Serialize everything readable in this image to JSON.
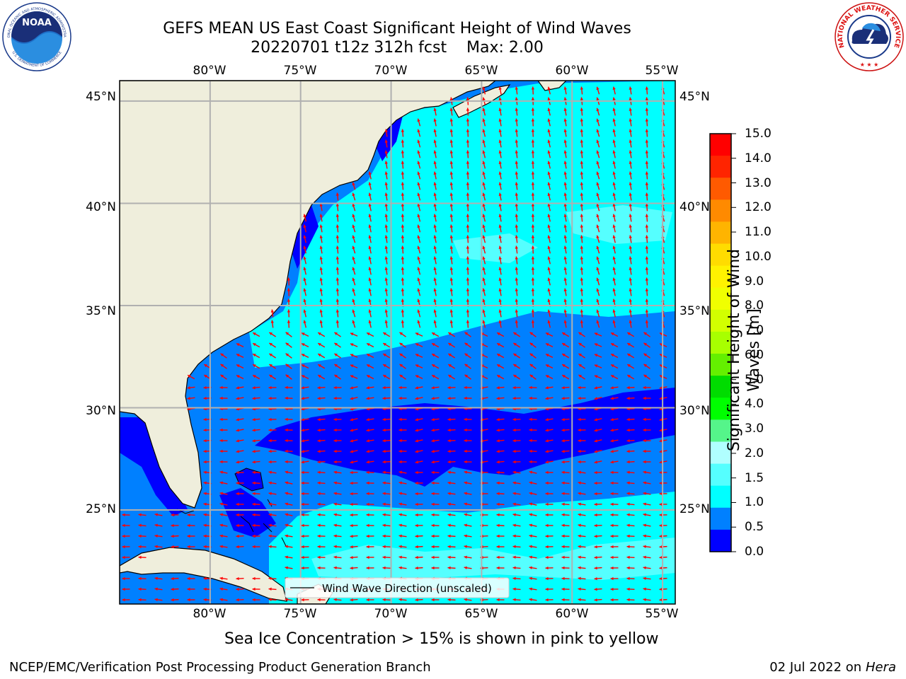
{
  "title": {
    "line1": "GEFS MEAN US East Coast Significant Height of Wind Waves",
    "line2": "20220701 t12z 312h fcst    Max: 2.00"
  },
  "logos": {
    "noaa_icon": "noaa-logo",
    "noaa_word": "NOAA",
    "noaa_ring_top": "NATIONAL OCEANIC AND ATMOSPHERIC ADMINISTRATION",
    "noaa_ring_bottom": "U.S. DEPARTMENT OF COMMERCE",
    "nws_icon": "nws-logo",
    "nws_ring": "NATIONAL WEATHER SERVICE"
  },
  "axes": {
    "lon_ticks": [
      "80°W",
      "75°W",
      "70°W",
      "65°W",
      "60°W",
      "55°W"
    ],
    "lat_ticks": [
      "45°N",
      "40°N",
      "35°N",
      "30°N",
      "25°N"
    ],
    "lon_range": [
      -85,
      -54.3
    ],
    "lat_range": [
      20.4,
      46
    ],
    "grid": true
  },
  "legend": {
    "label": "Wind Wave Direction (unscaled)",
    "placement": "bottom-center"
  },
  "colorbar": {
    "label_line1": "Significant Height of Wind",
    "label_line2": "Waves [m]",
    "levels": [
      "15.0",
      "14.0",
      "13.0",
      "12.0",
      "11.0",
      "10.0",
      "9.0",
      "8.0",
      "7.0",
      "6.0",
      "5.0",
      "4.0",
      "3.0",
      "2.0",
      "1.5",
      "1.0",
      "0.5",
      "0.0"
    ],
    "colors": [
      "#ff0000",
      "#ff2400",
      "#ff5a00",
      "#ff8a00",
      "#ffb400",
      "#ffdc00",
      "#fff200",
      "#f0ff00",
      "#d2ff00",
      "#a8ff00",
      "#64f000",
      "#00dc00",
      "#00ff00",
      "#55f58a",
      "#b0ffff",
      "#55ffff",
      "#00ffff",
      "#0080ff",
      "#0000ff"
    ]
  },
  "map_colors": {
    "land": "#efeedc",
    "wave_0_0.5": "#0000ff",
    "wave_0.5_1.0": "#0080ff",
    "wave_1.0_1.5": "#00ffff",
    "wave_1.5_2.0": "#55ffff",
    "arrow": "#ff0000",
    "grid": "#b0b0b0"
  },
  "caption": "Sea Ice Concentration > 15% is shown in pink to yellow",
  "footer": {
    "left": "NCEP/EMC/Verification Post Processing Product Generation Branch",
    "date": "02 Jul 2022 on ",
    "machine": "Hera"
  }
}
